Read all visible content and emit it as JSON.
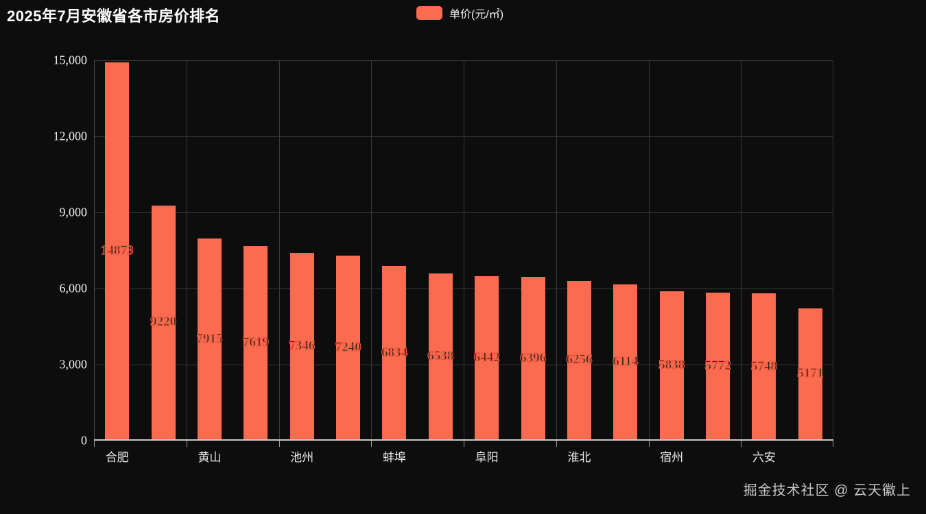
{
  "header": {
    "title": "2025年7月安徽省各市房价排名"
  },
  "legend": {
    "label": "单价(元/㎡)",
    "color": "#fb6b50"
  },
  "footer": {
    "watermark": "掘金技术社区 @ 云天徽上"
  },
  "chart_data": {
    "type": "bar",
    "title": "2025年7月安徽省各市房价排名",
    "series": [
      {
        "name": "单价(元/㎡)",
        "values": [
          14873,
          9220,
          7915,
          7619,
          7346,
          7240,
          6834,
          6538,
          6442,
          6396,
          6256,
          6114,
          5838,
          5772,
          5748,
          5171
        ]
      }
    ],
    "categories": [
      "合肥",
      "",
      "黄山",
      "",
      "池州",
      "",
      "蚌埠",
      "",
      "阜阳",
      "",
      "淮北",
      "",
      "宿州",
      "",
      "六安",
      ""
    ],
    "visible_category_labels": [
      "合肥",
      "黄山",
      "池州",
      "蚌埠",
      "阜阳",
      "淮北",
      "宿州",
      "六安"
    ],
    "xlabel": "",
    "ylabel": "",
    "ylim": [
      0,
      15000
    ],
    "y_ticks": [
      0,
      3000,
      6000,
      9000,
      12000,
      15000
    ],
    "y_tick_labels": [
      "0",
      "3,000",
      "6,000",
      "9,000",
      "12,000",
      "15,000"
    ],
    "grid": true,
    "legend_position": "top-center",
    "bar_color": "#fb6b50",
    "value_label_position": "inside-middle"
  }
}
